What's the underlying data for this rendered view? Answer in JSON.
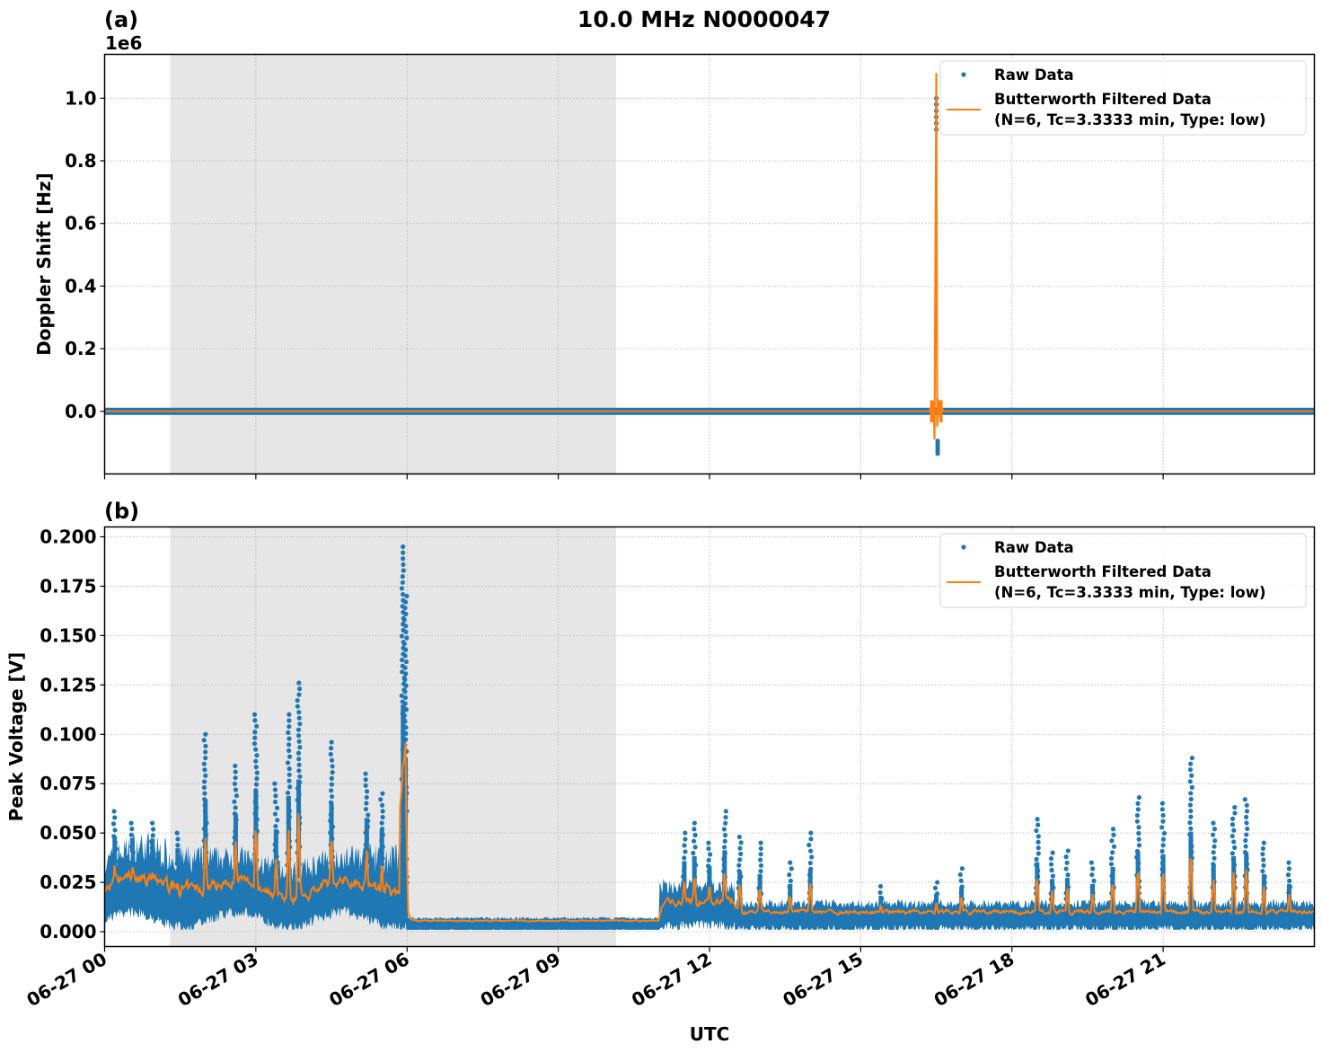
{
  "figure": {
    "title": "10.0 MHz N0000047",
    "xlabel": "UTC",
    "x_ticks": [
      "06-27 00",
      "06-27 03",
      "06-27 06",
      "06-27 09",
      "06-27 12",
      "06-27 15",
      "06-27 18",
      "06-27 21"
    ],
    "shaded_region": {
      "start_hour": 1.3,
      "end_hour": 10.15,
      "color": "#e6e6e6"
    },
    "colors": {
      "raw": "#1f77b4",
      "filtered": "#ff7f0e"
    }
  },
  "panel_a": {
    "label": "(a)",
    "offset_text": "1e6",
    "ylabel": "Doppler Shift [Hz]",
    "y_ticks": [
      "0.0",
      "0.2",
      "0.4",
      "0.6",
      "0.8",
      "1.0"
    ],
    "legend": {
      "raw": "Raw Data",
      "filtered_line1": "Butterworth Filtered Data",
      "filtered_line2": "(N=6, Tc=3.3333 min, Type: low)"
    }
  },
  "panel_b": {
    "label": "(b)",
    "ylabel": "Peak Voltage [V]",
    "y_ticks": [
      "0.000",
      "0.025",
      "0.050",
      "0.075",
      "0.100",
      "0.125",
      "0.150",
      "0.175",
      "0.200"
    ],
    "legend": {
      "raw": "Raw Data",
      "filtered_line1": "Butterworth Filtered Data",
      "filtered_line2": "(N=6, Tc=3.3333 min, Type: low)"
    }
  },
  "chart_data": [
    {
      "type": "scatter",
      "title": "10.0 MHz N0000047",
      "panel": "(a)",
      "xlabel": "",
      "ylabel": "Doppler Shift [Hz]",
      "y_scale": "1e6",
      "xlim": [
        "06-27 00:00",
        "06-28 00:00"
      ],
      "ylim": [
        -200000.0,
        1140000.0
      ],
      "grid": true,
      "legend_position": "upper right",
      "series": [
        {
          "name": "Raw Data",
          "style": "dots",
          "description": "flat near 0 Hz all day; spike at ~16:30 UTC reaching 1.0e6 and dipping to -0.13e6",
          "x_hours": [
            0,
            16.4,
            16.48,
            16.5,
            16.52,
            24
          ],
          "values": [
            0,
            0,
            1000000,
            -130000,
            0,
            0
          ]
        },
        {
          "name": "Butterworth Filtered Data (N=6, Tc=3.3333 min, Type: low)",
          "style": "line",
          "x_hours": [
            0,
            16.4,
            16.47,
            16.5,
            16.53,
            24
          ],
          "values": [
            0,
            0,
            1080000,
            -90000,
            0,
            0
          ]
        }
      ],
      "annotations": [
        "Shaded region ~01:18 to ~10:10 UTC"
      ]
    },
    {
      "type": "scatter",
      "panel": "(b)",
      "xlabel": "UTC",
      "ylabel": "Peak Voltage [V]",
      "xlim": [
        "06-27 00:00",
        "06-28 00:00"
      ],
      "ylim": [
        -0.008,
        0.205
      ],
      "grid": true,
      "legend_position": "upper right",
      "series": [
        {
          "name": "Raw Data",
          "style": "dots",
          "x_hours": [
            0,
            0.5,
            1,
            1.5,
            2,
            2.5,
            3,
            3.5,
            3.85,
            4.5,
            5.2,
            5.95,
            6.05,
            7,
            8,
            9,
            10,
            11,
            11.7,
            12.3,
            13,
            14,
            15,
            16.5,
            17,
            18,
            18.5,
            19,
            20,
            20.5,
            21,
            21.5,
            22,
            22.5,
            23,
            24
          ],
          "values": [
            0.06,
            0.055,
            0.055,
            0.05,
            0.1,
            0.085,
            0.11,
            0.11,
            0.126,
            0.095,
            0.08,
            0.195,
            0.01,
            0.008,
            0.007,
            0.007,
            0.006,
            0.018,
            0.05,
            0.06,
            0.05,
            0.05,
            0.03,
            0.025,
            0.032,
            0.018,
            0.057,
            0.04,
            0.052,
            0.068,
            0.065,
            0.088,
            0.055,
            0.068,
            0.067,
            0.02
          ]
        },
        {
          "name": "Butterworth Filtered Data (N=6, Tc=3.3333 min, Type: low)",
          "style": "line",
          "x_hours": [
            0,
            0.5,
            1,
            1.5,
            2,
            2.5,
            3,
            3.5,
            3.85,
            4.5,
            5.2,
            5.95,
            6.05,
            7,
            8,
            9,
            10,
            11,
            11.7,
            12.3,
            13,
            14,
            15,
            16.5,
            17,
            18,
            18.5,
            19,
            20,
            20.5,
            21,
            21.5,
            22,
            22.5,
            23,
            24
          ],
          "values": [
            0.02,
            0.025,
            0.03,
            0.025,
            0.03,
            0.03,
            0.045,
            0.05,
            0.07,
            0.065,
            0.055,
            0.095,
            0.005,
            0.006,
            0.005,
            0.005,
            0.004,
            0.008,
            0.03,
            0.025,
            0.018,
            0.015,
            0.008,
            0.012,
            0.016,
            0.008,
            0.02,
            0.015,
            0.018,
            0.025,
            0.02,
            0.044,
            0.02,
            0.025,
            0.025,
            0.01
          ]
        }
      ],
      "annotations": [
        "Shaded region ~01:18 to ~10:10 UTC"
      ]
    }
  ]
}
